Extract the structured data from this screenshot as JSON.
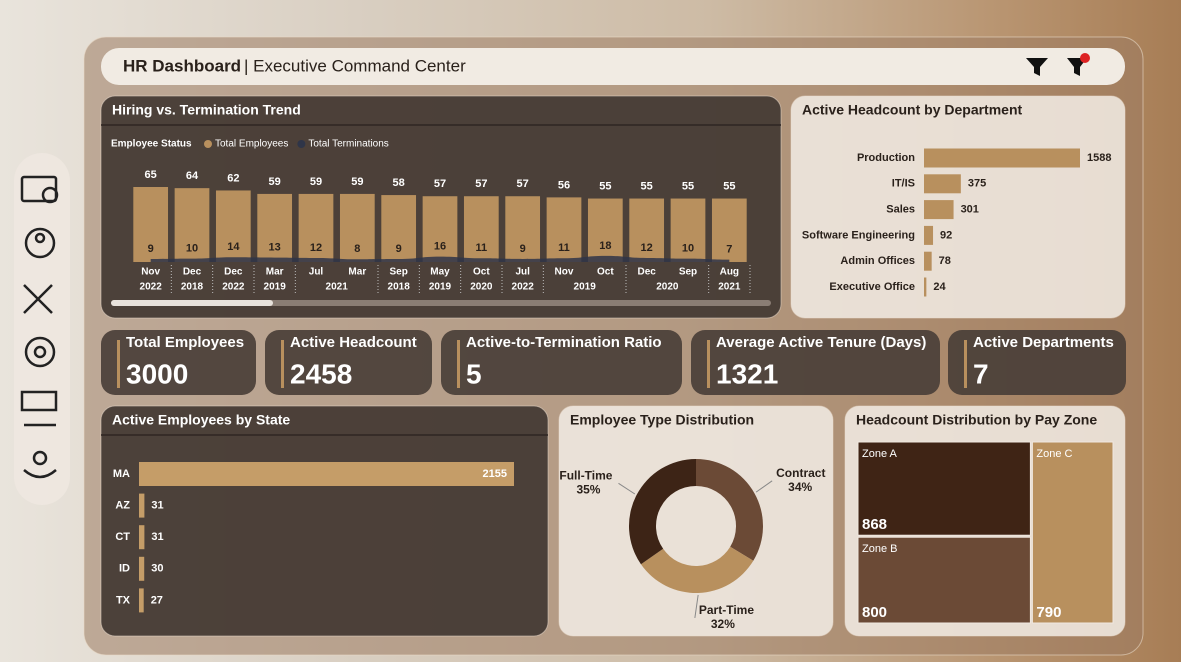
{
  "header": {
    "title": "HR Dashboard",
    "subtitle": "| Executive Command Center"
  },
  "kpis": [
    {
      "label": "Total Employees",
      "value": 3000
    },
    {
      "label": "Active Headcount",
      "value": 2458
    },
    {
      "label": "Active-to-Termination Ratio",
      "value": 5
    },
    {
      "label": "Average Active Tenure (Days)",
      "value": 1321
    },
    {
      "label": "Active Departments",
      "value": 7
    }
  ],
  "chart_data": [
    {
      "type": "combo",
      "title": "Hiring vs. Termination Trend",
      "legend_title": "Employee Status",
      "categories": [
        "Nov",
        "Dec",
        "Dec",
        "Mar",
        "Jul",
        "Mar",
        "Sep",
        "May",
        "Oct",
        "Jul",
        "Nov",
        "Oct",
        "Dec",
        "Sep",
        "Aug"
      ],
      "years": [
        "2022",
        "2018",
        "2022",
        "2019",
        "2021",
        null,
        "2018",
        "2019",
        "2020",
        "2022",
        "2019",
        null,
        "2020",
        null,
        "2021"
      ],
      "series": [
        {
          "name": "Total Employees",
          "type": "bar",
          "color": "#b8905e",
          "values": [
            65,
            64,
            62,
            59,
            59,
            59,
            58,
            57,
            57,
            57,
            56,
            55,
            55,
            55,
            55
          ]
        },
        {
          "name": "Total Terminations",
          "type": "area",
          "color": "#2f3548",
          "values": [
            9,
            10,
            14,
            13,
            12,
            8,
            9,
            16,
            11,
            9,
            11,
            18,
            12,
            10,
            7
          ]
        }
      ]
    },
    {
      "type": "hbar",
      "title": "Active Headcount by Department",
      "categories": [
        "Production",
        "IT/IS",
        "Sales",
        "Software Engineering",
        "Admin Offices",
        "Executive Office"
      ],
      "values": [
        1588,
        375,
        301,
        92,
        78,
        24
      ],
      "color": "#b8905e"
    },
    {
      "type": "hbar",
      "title": "Active Employees by State",
      "categories": [
        "MA",
        "AZ",
        "CT",
        "ID",
        "TX"
      ],
      "values": [
        2155,
        31,
        31,
        30,
        27
      ],
      "color": "#c59d68"
    },
    {
      "type": "donut",
      "title": "Employee Type Distribution",
      "categories": [
        "Contract",
        "Part-Time",
        "Full-Time"
      ],
      "values": [
        34,
        32,
        35
      ],
      "value_labels": [
        "34%",
        "32%",
        "35%"
      ],
      "colors": [
        "#6b4a36",
        "#b8905e",
        "#3d2416"
      ]
    },
    {
      "type": "treemap",
      "title": "Headcount Distribution by Pay Zone",
      "categories": [
        "Zone A",
        "Zone B",
        "Zone C"
      ],
      "values": [
        868,
        800,
        790
      ],
      "colors": [
        "#3f2415",
        "#6b4a36",
        "#b8905e"
      ]
    }
  ]
}
